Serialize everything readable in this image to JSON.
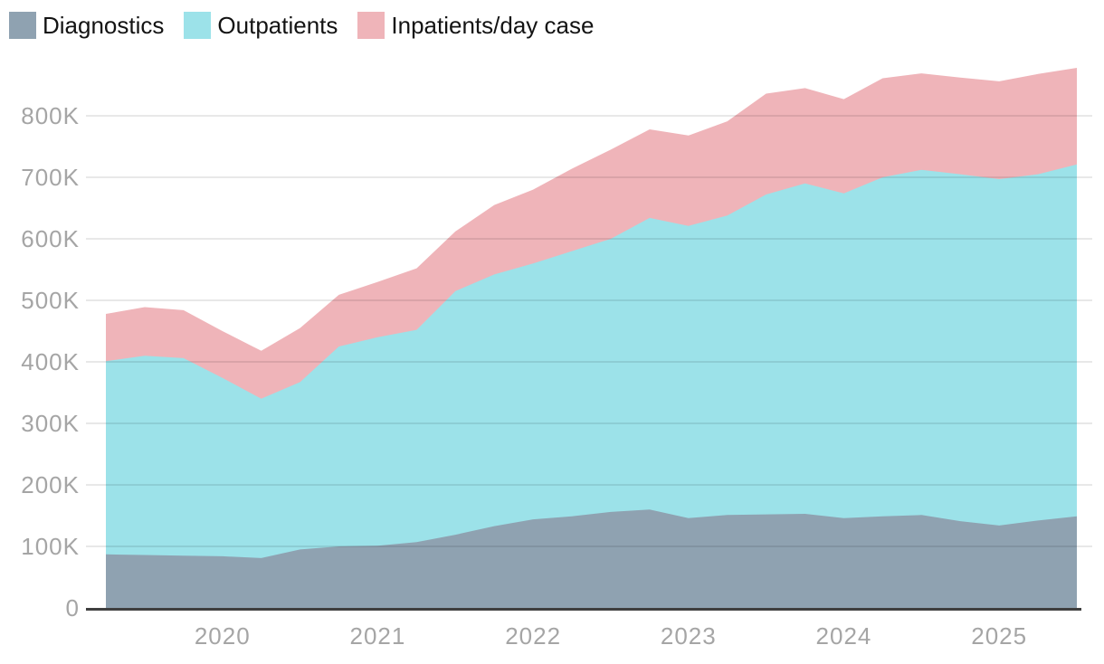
{
  "legend": {
    "position": "top-left",
    "items": [
      {
        "label": "Diagnostics",
        "color": "#8fa2b1"
      },
      {
        "label": "Outpatients",
        "color": "#9ce2e9"
      },
      {
        "label": "Inpatients/day case",
        "color": "#efb4b9"
      }
    ]
  },
  "axes": {
    "y_tick_labels": [
      "0",
      "100K",
      "200K",
      "300K",
      "400K",
      "500K",
      "600K",
      "700K",
      "800K"
    ],
    "x_tick_labels": [
      "2020",
      "2021",
      "2022",
      "2023",
      "2024",
      "2025"
    ],
    "tick_color": "#a5a5a5",
    "baseline_color": "#3f3f3f",
    "gridline_color": "rgba(0,0,0,0.09)"
  },
  "chart_data": {
    "type": "area",
    "stacked": true,
    "title": "",
    "xlabel": "",
    "ylabel": "",
    "value_unit": "thousands (K)",
    "ylim": [
      0,
      880
    ],
    "grid": true,
    "legend_position": "top-left",
    "x": [
      "2019 Q2",
      "2019 Q3",
      "2019 Q4",
      "2020 Q1",
      "2020 Q2",
      "2020 Q3",
      "2020 Q4",
      "2021 Q1",
      "2021 Q2",
      "2021 Q3",
      "2021 Q4",
      "2022 Q1",
      "2022 Q2",
      "2022 Q3",
      "2022 Q4",
      "2023 Q1",
      "2023 Q2",
      "2023 Q3",
      "2023 Q4",
      "2024 Q1",
      "2024 Q2",
      "2024 Q3",
      "2024 Q4",
      "2025 Q1",
      "2025 Q2",
      "2025 Q3"
    ],
    "x_axis_labels": [
      "2020",
      "2021",
      "2022",
      "2023",
      "2024",
      "2025"
    ],
    "x_axis_label_indices": [
      3,
      7,
      11,
      15,
      19,
      23
    ],
    "y_ticks_k": [
      0,
      100,
      200,
      300,
      400,
      500,
      600,
      700,
      800
    ],
    "series": [
      {
        "name": "Diagnostics",
        "color": "#8fa2b1",
        "values": [
          87,
          86,
          85,
          84,
          81,
          95,
          100,
          101,
          107,
          119,
          133,
          144,
          149,
          156,
          160,
          146,
          151,
          152,
          153,
          146,
          149,
          151,
          141,
          134,
          142,
          149
        ]
      },
      {
        "name": "Outpatients",
        "color": "#9ce2e9",
        "values": [
          314,
          324,
          321,
          290,
          259,
          272,
          325,
          339,
          345,
          396,
          409,
          416,
          431,
          444,
          474,
          475,
          487,
          520,
          537,
          528,
          551,
          561,
          564,
          563,
          563,
          572
        ]
      },
      {
        "name": "Inpatients/day case",
        "color": "#efb4b9",
        "values": [
          77,
          79,
          78,
          76,
          78,
          88,
          84,
          90,
          100,
          97,
          113,
          120,
          134,
          145,
          144,
          147,
          153,
          164,
          155,
          153,
          161,
          157,
          157,
          159,
          163,
          157
        ]
      }
    ],
    "stacked_totals_k": [
      478,
      489,
      484,
      450,
      418,
      455,
      509,
      530,
      552,
      612,
      655,
      680,
      714,
      745,
      778,
      768,
      791,
      836,
      845,
      827,
      861,
      869,
      862,
      856,
      868,
      878
    ]
  }
}
